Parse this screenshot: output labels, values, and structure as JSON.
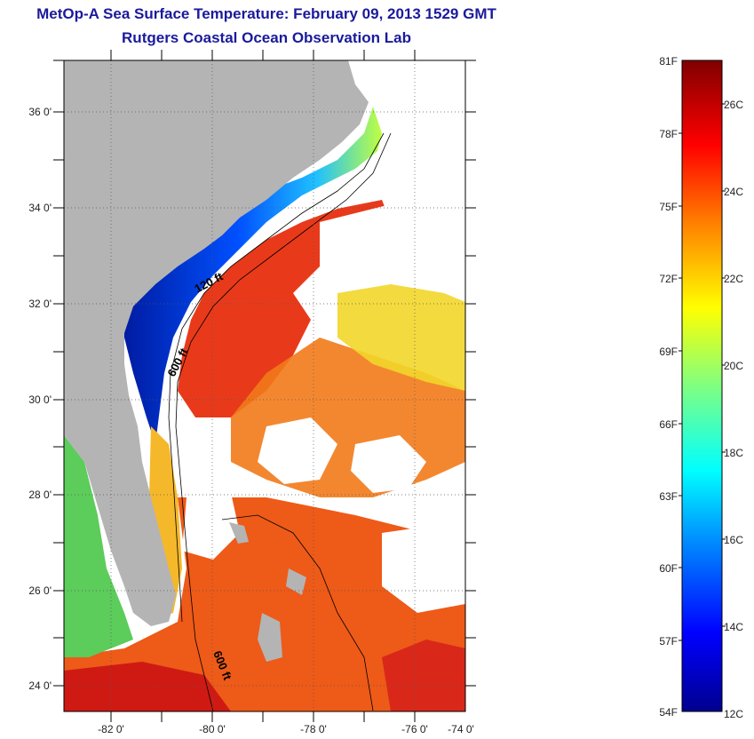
{
  "title": "MetOp-A Sea Surface Temperature:  February 09, 2013 1529 GMT",
  "subtitle": "Rutgers Coastal Ocean Observation Lab",
  "map": {
    "lat_labels": [
      "36 0'",
      "34 0'",
      "32 0'",
      "30 0'",
      "28 0'",
      "26 0'",
      "24 0'"
    ],
    "lon_labels": [
      "-82 0'",
      "-80 0'",
      "-78 0'",
      "-76 0'",
      "-74 0'"
    ],
    "contour_labels": [
      "120 ft",
      "600 ft",
      "600 ft"
    ]
  },
  "colorbar": {
    "f_labels": [
      "81F",
      "78F",
      "75F",
      "72F",
      "69F",
      "66F",
      "63F",
      "60F",
      "57F",
      "54F"
    ],
    "c_labels": [
      "26C",
      "24C",
      "22C",
      "20C",
      "18C",
      "16C",
      "14C",
      "12C"
    ]
  },
  "colors": {
    "land": "#b4b4b4",
    "title": "#1a1a9c",
    "warm": "#e8221a",
    "cold": "#0a1fb8"
  }
}
